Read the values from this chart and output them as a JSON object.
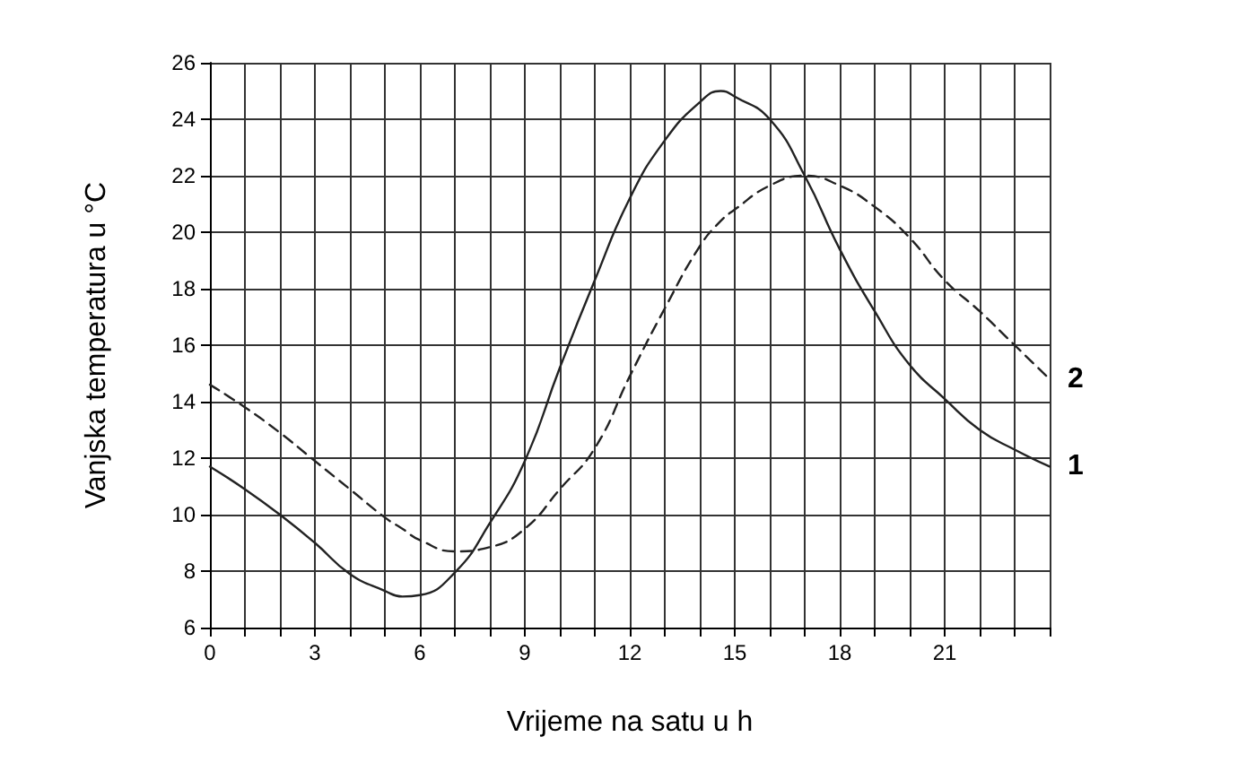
{
  "chart_data": {
    "type": "line",
    "xlabel": "Vrijeme na satu u h",
    "ylabel": "Vanjska temperatura u °C",
    "x": [
      0,
      1,
      2,
      3,
      4,
      5,
      5.5,
      6,
      7,
      8,
      9,
      10,
      11,
      12,
      13,
      14,
      14.6,
      15,
      16,
      17,
      18,
      19,
      20,
      21,
      22,
      23,
      24
    ],
    "series": [
      {
        "name": "1",
        "color": "#222222",
        "line_style": "solid",
        "values": [
          11.7,
          10.9,
          10.0,
          9.0,
          7.9,
          7.3,
          7.1,
          7.15,
          7.95,
          9.7,
          11.9,
          15.2,
          18.3,
          21.2,
          23.25,
          24.6,
          25.0,
          24.8,
          24.0,
          22.0,
          19.4,
          17.2,
          15.3,
          14.1,
          13.0,
          12.3,
          11.7
        ]
      },
      {
        "name": "2",
        "color": "#222222",
        "line_style": "dashed",
        "values": [
          14.6,
          13.8,
          12.9,
          11.9,
          10.9,
          9.9,
          9.5,
          9.1,
          8.7,
          8.85,
          9.5,
          10.9,
          12.35,
          14.9,
          17.3,
          19.5,
          20.4,
          20.8,
          21.65,
          22.0,
          21.65,
          20.9,
          19.8,
          18.3,
          17.2,
          16.0,
          14.8
        ]
      }
    ],
    "xlim": [
      0,
      24
    ],
    "xticks": [
      0,
      {
        "value": 1,
        "label": null
      },
      {
        "value": 2,
        "label": null
      },
      3,
      {
        "value": 4,
        "label": null
      },
      {
        "value": 5,
        "label": null
      },
      6,
      {
        "value": 7,
        "label": null
      },
      {
        "value": 8,
        "label": null
      },
      9,
      {
        "value": 10,
        "label": null
      },
      {
        "value": 11,
        "label": null
      },
      12,
      {
        "value": 13,
        "label": null
      },
      {
        "value": 14,
        "label": null
      },
      15,
      {
        "value": 16,
        "label": null
      },
      {
        "value": 17,
        "label": null
      },
      18,
      {
        "value": 19,
        "label": null
      },
      {
        "value": 20,
        "label": null
      },
      21,
      {
        "value": 22,
        "label": null
      },
      {
        "value": 23,
        "label": null
      },
      {
        "value": 24,
        "label": null
      }
    ],
    "ylim": [
      6,
      26
    ],
    "yticks": [
      6,
      8,
      10,
      12,
      14,
      16,
      18,
      20,
      22,
      24,
      26
    ],
    "grid": true,
    "legend": false,
    "marker": "none"
  }
}
